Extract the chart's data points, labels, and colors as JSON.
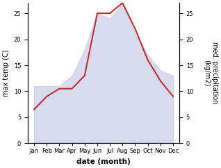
{
  "months": [
    "Jan",
    "Feb",
    "Mar",
    "Apr",
    "May",
    "Jun",
    "Jul",
    "Aug",
    "Sep",
    "Oct",
    "Nov",
    "Dec"
  ],
  "month_positions": [
    1,
    2,
    3,
    4,
    5,
    6,
    7,
    8,
    9,
    10,
    11,
    12
  ],
  "precipitation": [
    11,
    11,
    11,
    13,
    18,
    25,
    24,
    27,
    21,
    17,
    14,
    13
  ],
  "max_temp": [
    6.5,
    9,
    10.5,
    10.5,
    13,
    25,
    25,
    27,
    22,
    16,
    12,
    9
  ],
  "fill_color": "#c8cce8",
  "fill_alpha": 0.7,
  "precip_color": "#c03030",
  "temp_ylim": [
    0,
    27
  ],
  "precip_ylim": [
    0,
    27
  ],
  "temp_yticks": [
    0,
    5,
    10,
    15,
    20,
    25
  ],
  "precip_yticks": [
    0,
    5,
    10,
    15,
    20,
    25
  ],
  "xlabel": "date (month)",
  "ylabel_left": "max temp (C)",
  "ylabel_right": "med. precipitation\n(kg/m2)",
  "tick_fontsize": 6,
  "label_fontsize": 7,
  "xlabel_fontsize": 7.5
}
